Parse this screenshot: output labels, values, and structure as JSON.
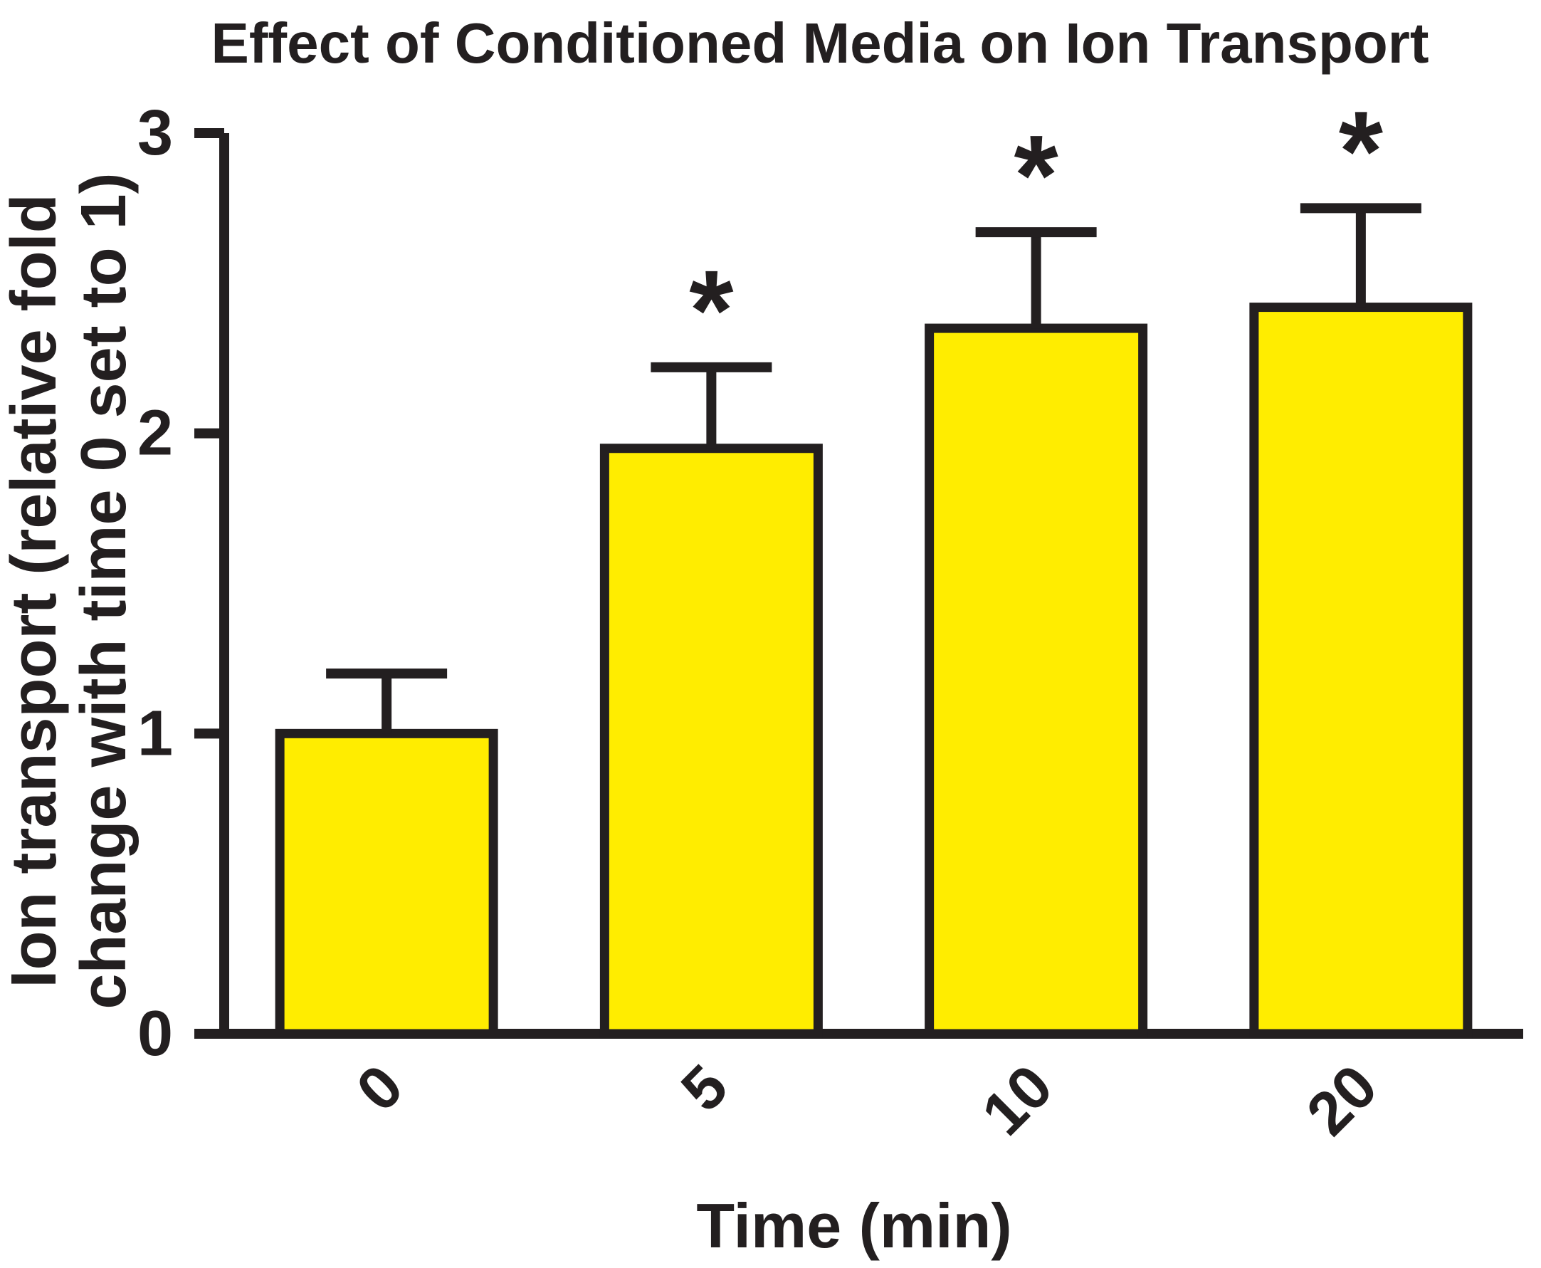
{
  "page": {
    "background": "#FFFFFF"
  },
  "chart_data": {
    "type": "bar",
    "title": "Effect of Conditioned Media on Ion Transport",
    "xlabel": "Time (min)",
    "ylabel": "Ion transport (relative fold change with time 0 set to 1)",
    "ylabel_lines": [
      "Ion transport (relative fold",
      "change with time 0 set to 1)"
    ],
    "categories": [
      "0",
      "5",
      "10",
      "20"
    ],
    "values": [
      1.0,
      1.95,
      2.35,
      2.42
    ],
    "errors": [
      0.2,
      0.27,
      0.32,
      0.33
    ],
    "error_bars": "upper-only",
    "significance": [
      "",
      "*",
      "*",
      "*"
    ],
    "yticks": [
      0,
      1,
      2,
      3
    ],
    "ylim": [
      0,
      3
    ],
    "grid": false,
    "legend": "none",
    "bar_color": "#FFED00",
    "line_color": "#231F20",
    "background": "#FFFFFF"
  }
}
